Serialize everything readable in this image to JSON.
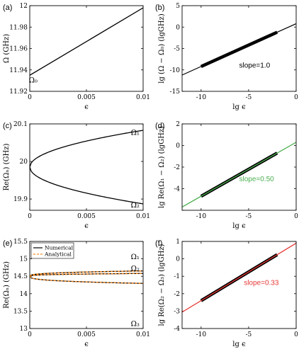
{
  "colors": {
    "black": "#000000",
    "green": "#4caf50",
    "red": "#e53935",
    "orange": "#ff8c1a"
  },
  "chart_data": [
    {
      "panel": "(a)",
      "type": "line",
      "xlabel": "ϵ",
      "ylabel": "Ω (GHz)",
      "xlim": [
        0,
        0.01
      ],
      "ylim": [
        11.92,
        12
      ],
      "xticks": [
        0,
        0.005,
        0.01
      ],
      "xtick_labels": [
        "0",
        "0.005",
        "0.01"
      ],
      "yticks": [
        11.92,
        11.94,
        11.96,
        11.98,
        12
      ],
      "ytick_labels": [
        "11.92",
        "11.94",
        "11.96",
        "11.98",
        "12"
      ],
      "series": [
        {
          "x": [
            0,
            0.01
          ],
          "y": [
            11.935,
            11.998
          ],
          "color": "#000000",
          "width": 1.3
        }
      ],
      "curve_labels": [
        {
          "text": "Ω₀",
          "x": 0.0003,
          "y": 11.931,
          "color": "#000000"
        }
      ]
    },
    {
      "panel": "(b)",
      "type": "line",
      "xlabel": "lg ϵ",
      "ylabel": "lg (Ω − Ω₀) (lgGHz)",
      "xlim": [
        -12,
        0
      ],
      "ylim": [
        -15,
        5
      ],
      "xticks": [
        -10,
        -5,
        0
      ],
      "xtick_labels": [
        "-10",
        "-5",
        "0"
      ],
      "yticks": [
        -15,
        -10,
        -5,
        0,
        5
      ],
      "ytick_labels": [
        "-15",
        "-10",
        "-5",
        "0",
        "5"
      ],
      "series": [
        {
          "x": [
            -12,
            0
          ],
          "y": [
            -11.2,
            0.8
          ],
          "color": "#000000",
          "width": 1.2
        },
        {
          "x": [
            -10,
            -2
          ],
          "y": [
            -9.2,
            -1.2
          ],
          "color": "#000000",
          "width": 4.5
        }
      ],
      "annotations": [
        {
          "text": "slope=1.0",
          "x": -6.0,
          "y": -9.5,
          "color": "#000000"
        }
      ]
    },
    {
      "panel": "(c)",
      "type": "line",
      "xlabel": "ϵ",
      "ylabel": "Re(Ωₙ) (GHz)",
      "xlim": [
        0,
        0.01
      ],
      "ylim": [
        19.87,
        20.1
      ],
      "xticks": [
        0,
        0.005,
        0.01
      ],
      "xtick_labels": [
        "0",
        "0.005",
        "0.01"
      ],
      "yticks": [
        19.9,
        20,
        20.1
      ],
      "ytick_labels": [
        "19.9",
        "20",
        "20.1"
      ],
      "branches": [
        {
          "center": 20,
          "coef": 0.98,
          "power": 0.5,
          "y0": 19.985,
          "color": "#000000",
          "width": 1.3
        }
      ],
      "curve_labels": [
        {
          "text": "Ω₁",
          "x": 0.0093,
          "y": 20.078,
          "color": "#000000"
        },
        {
          "text": "Ω₂",
          "x": 0.0093,
          "y": 19.885,
          "color": "#000000"
        }
      ]
    },
    {
      "panel": "(d)",
      "type": "line",
      "xlabel": "lg ϵ",
      "ylabel": "lg Re(Ω₁ − Ω₂) (lgGHz)",
      "xlim": [
        -12,
        0
      ],
      "ylim": [
        -6,
        2
      ],
      "xticks": [
        -10,
        -5,
        0
      ],
      "xtick_labels": [
        "-10",
        "-5",
        "0"
      ],
      "yticks": [
        -6,
        -4,
        -2,
        0,
        2
      ],
      "ytick_labels": [
        "",
        "-4",
        "-2",
        "0",
        "2"
      ],
      "series": [
        {
          "x": [
            -12,
            0
          ],
          "y": [
            -5.7,
            0.3
          ],
          "color": "#4caf50",
          "width": 1.3
        },
        {
          "x": [
            -10,
            -2
          ],
          "y": [
            -4.7,
            -0.7
          ],
          "color": "#000000",
          "width": 4.5
        },
        {
          "x": [
            -10,
            -2
          ],
          "y": [
            -4.7,
            -0.7
          ],
          "color": "#4caf50",
          "width": 1.3
        }
      ],
      "annotations": [
        {
          "text": "slope=0.50",
          "x": -6.0,
          "y": -3.3,
          "color": "#4caf50"
        }
      ]
    },
    {
      "panel": "(e)",
      "type": "line",
      "xlabel": "ϵ",
      "ylabel": "Re(Ωₙ) (GHz)",
      "xlim": [
        0,
        0.01
      ],
      "ylim": [
        13,
        15.5
      ],
      "xticks": [
        0,
        0.005,
        0.01
      ],
      "xtick_labels": [
        "0",
        "0.005",
        "0.01"
      ],
      "yticks": [
        13,
        13.5,
        14,
        14.5,
        15,
        15.5
      ],
      "ytick_labels": [
        "13",
        "13.5",
        "14",
        "14.5",
        "15",
        "15.5"
      ],
      "legend": {
        "position": "top-left",
        "entries": [
          {
            "label": "Numerical",
            "color": "#000000",
            "dash": ""
          },
          {
            "label": "Analytical",
            "color": "#ff8c1a",
            "dash": "3,2"
          }
        ]
      },
      "branches": [
        {
          "center": 14.5,
          "coef": 3.4,
          "power": 0.333,
          "y0": 14.5,
          "color": "#000000",
          "width": 1.3
        },
        {
          "center": 14.5,
          "coef": 3.4,
          "power": 0.333,
          "y0": 14.5,
          "color": "#ff8c1a",
          "width": 1.3,
          "dash": "3,2"
        }
      ],
      "curve_labels": [
        {
          "text": "Ω₁",
          "x": 0.0093,
          "y": 15.07,
          "color": "#000000"
        },
        {
          "text": "Ω₂",
          "x": 0.0093,
          "y": 14.74,
          "color": "#000000"
        },
        {
          "text": "Ω₃",
          "x": 0.0093,
          "y": 13.15,
          "color": "#000000"
        }
      ]
    },
    {
      "panel": "(f)",
      "type": "line",
      "xlabel": "lg ϵ",
      "ylabel": "lg Re(Ω₂ − Ω₃) (lgGHz)",
      "xlim": [
        -12,
        0
      ],
      "ylim": [
        -4,
        1
      ],
      "xticks": [
        -10,
        -5,
        0
      ],
      "xtick_labels": [
        "-10",
        "-5",
        "0"
      ],
      "yticks": [
        -4,
        -3,
        -2,
        -1,
        0,
        1
      ],
      "ytick_labels": [
        "-4",
        "-3",
        "-2",
        "-1",
        "0",
        "1"
      ],
      "series": [
        {
          "x": [
            -12,
            0
          ],
          "y": [
            -3.06,
            0.9
          ],
          "color": "#e53935",
          "width": 1.3
        },
        {
          "x": [
            -10,
            -2
          ],
          "y": [
            -2.4,
            0.24
          ],
          "color": "#000000",
          "width": 4.5
        },
        {
          "x": [
            -10,
            -2
          ],
          "y": [
            -2.4,
            0.24
          ],
          "color": "#e53935",
          "width": 1.3
        }
      ],
      "annotations": [
        {
          "text": "slope=0.33",
          "x": -5.5,
          "y": -1.5,
          "color": "#e53935"
        }
      ]
    }
  ]
}
